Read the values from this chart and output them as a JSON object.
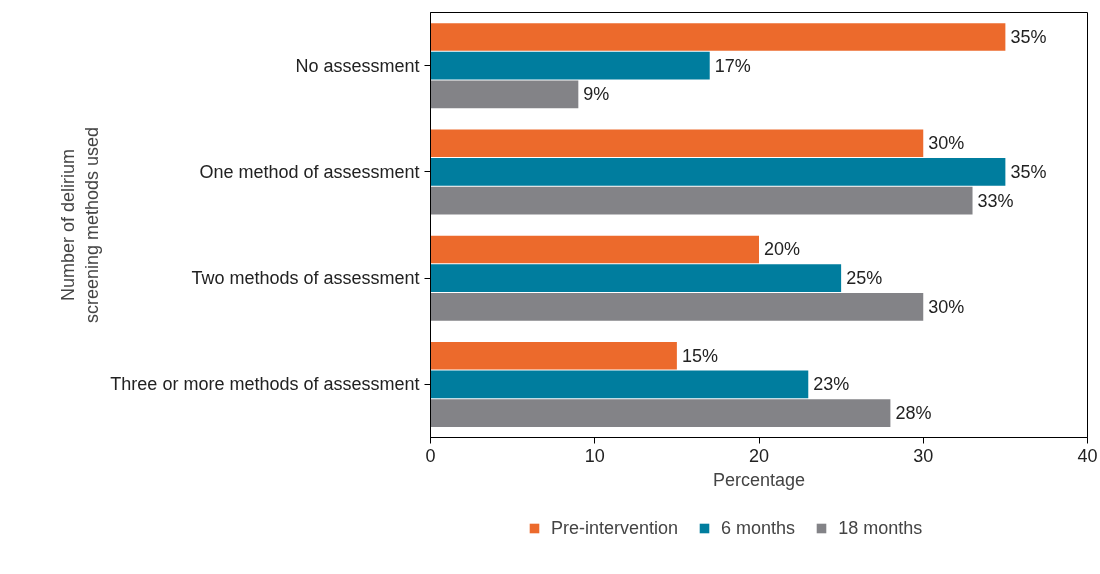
{
  "chart_data": {
    "type": "bar",
    "orientation": "horizontal",
    "xlabel": "Percentage",
    "ylabel": "Number of delirium\nscreening methods used",
    "categories": [
      "No assessment",
      "One method of assessment",
      "Two methods of assessment",
      "Three or more methods of assessment"
    ],
    "series": [
      {
        "name": "Pre-intervention",
        "color": "#ec6a2c",
        "values": [
          35,
          30,
          20,
          15
        ],
        "value_labels": [
          "35%",
          "30%",
          "20%",
          "15%"
        ]
      },
      {
        "name": "6 months",
        "color": "#007d9e",
        "values": [
          17,
          35,
          25,
          23
        ],
        "value_labels": [
          "17%",
          "35%",
          "25%",
          "23%"
        ]
      },
      {
        "name": "18 months",
        "color": "#838387",
        "values": [
          9,
          33,
          30,
          28
        ],
        "value_labels": [
          "9%",
          "33%",
          "30%",
          "28%"
        ]
      }
    ],
    "xlim": [
      0,
      40
    ],
    "xticks": [
      0,
      10,
      20,
      30,
      40
    ],
    "grid": false,
    "legend": "bottom"
  }
}
